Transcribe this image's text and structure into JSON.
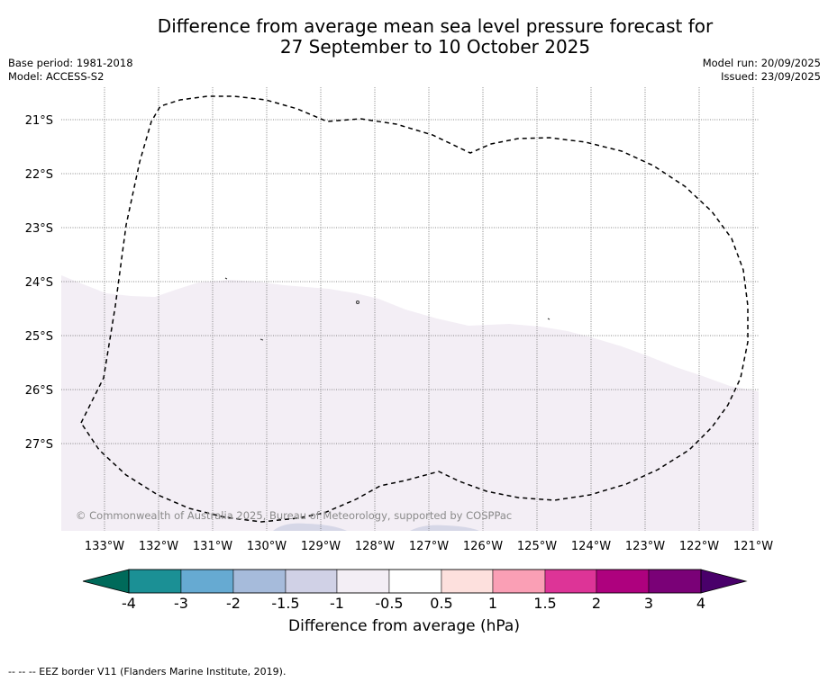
{
  "header": {
    "title_line1": "Difference from average mean sea level pressure forecast for",
    "title_line2": "27 September to 10 October 2025",
    "base_period": "Base period: 1981-2018",
    "model": "Model: ACCESS-S2",
    "model_run": "Model run: 20/09/2025",
    "issued": "Issued: 23/09/2025"
  },
  "map": {
    "lon_labels": [
      "133°W",
      "132°W",
      "131°W",
      "130°W",
      "129°W",
      "128°W",
      "127°W",
      "126°W",
      "125°W",
      "124°W",
      "123°W",
      "122°W",
      "121°W"
    ],
    "lat_labels": [
      "21°S",
      "22°S",
      "23°S",
      "24°S",
      "25°S",
      "26°S",
      "27°S"
    ],
    "copyright": "© Commonwealth of Australia 2025, Bureau of Meteorology, supported by COSPPac",
    "fill_color_light": "#f3eef5",
    "fill_color_blue": "#d6d7e7",
    "eez_color": "#000000"
  },
  "colorbar": {
    "tick_labels": [
      "-4",
      "-3",
      "-2",
      "-1.5",
      "-1",
      "-0.5",
      "0.5",
      "1",
      "1.5",
      "2",
      "3",
      "4"
    ],
    "colors": [
      "#1b9095",
      "#66aad2",
      "#a6bbdb",
      "#d0d1e6",
      "#f3eef5",
      "#ffffff",
      "#fde0dd",
      "#fa9fb5",
      "#dd3497",
      "#ae017e",
      "#7a0177"
    ],
    "under_color": "#006a5a",
    "over_color": "#49006a",
    "label": "Difference from average (hPa)"
  },
  "footer": {
    "legend": "-- -- -- EEZ border V11 (Flanders Marine Institute, 2019)."
  }
}
